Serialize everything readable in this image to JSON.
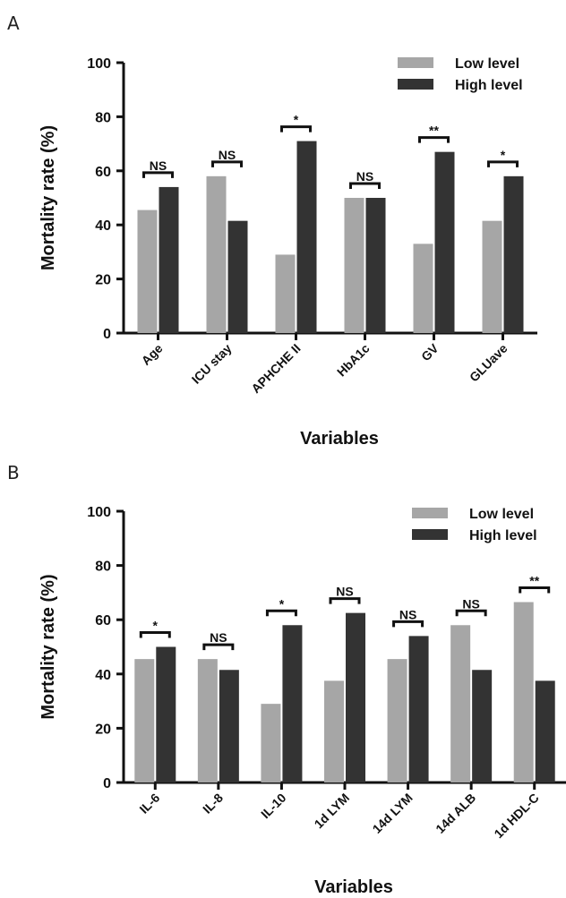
{
  "panels": [
    {
      "letter": "A"
    },
    {
      "letter": "B"
    }
  ],
  "chart_data": [
    {
      "type": "bar",
      "xlabel": "Variables",
      "ylabel": "Mortality rate (%)",
      "ylim": [
        0,
        100
      ],
      "yticks": [
        0,
        20,
        40,
        60,
        80,
        100
      ],
      "categories": [
        "Age",
        "ICU stay",
        "APHCHE II",
        "HbA1c",
        "GV",
        "GLUave"
      ],
      "series": [
        {
          "name": "Low level",
          "color": "#a6a6a6",
          "values": [
            45.5,
            58,
            29,
            50,
            33,
            41.5
          ]
        },
        {
          "name": "High level",
          "color": "#333333",
          "values": [
            54,
            41.5,
            71,
            50,
            67,
            58
          ]
        }
      ],
      "significance": [
        "NS",
        "NS",
        "*",
        "NS",
        "**",
        "*"
      ],
      "legend_position": "top-right",
      "grid": false
    },
    {
      "type": "bar",
      "xlabel": "Variables",
      "ylabel": "Mortality rate (%)",
      "ylim": [
        0,
        100
      ],
      "yticks": [
        0,
        20,
        40,
        60,
        80,
        100
      ],
      "categories": [
        "IL-6",
        "IL-8",
        "IL-10",
        "1d LYM",
        "14d LYM",
        "14d ALB",
        "1d HDL-C"
      ],
      "series": [
        {
          "name": "Low level",
          "color": "#a6a6a6",
          "values": [
            45.5,
            45.5,
            29,
            37.5,
            45.5,
            58,
            66.5
          ]
        },
        {
          "name": "High level",
          "color": "#333333",
          "values": [
            50,
            41.5,
            58,
            62.5,
            54,
            41.5,
            37.5
          ]
        }
      ],
      "significance": [
        "*",
        "NS",
        "*",
        "NS",
        "NS",
        "NS",
        "**"
      ],
      "legend_position": "top-right",
      "grid": false
    }
  ]
}
